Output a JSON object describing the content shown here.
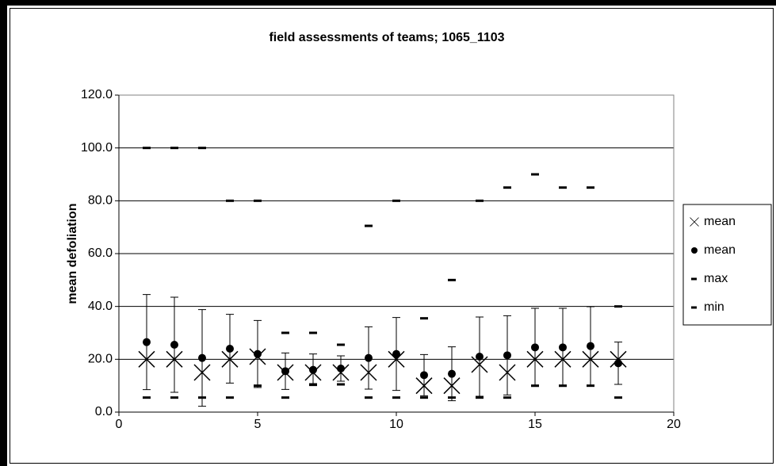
{
  "chart_data": {
    "type": "scatter",
    "title": "field assessments of teams; 1065_1103",
    "y_label": "mean defoliation",
    "xlim": [
      0,
      20
    ],
    "xticks": [
      0,
      5,
      10,
      15,
      20
    ],
    "ylim": [
      0,
      120
    ],
    "yticks": [
      {
        "value": 0,
        "label": "0.0"
      },
      {
        "value": 20,
        "label": "20.0"
      },
      {
        "value": 40,
        "label": "40.0"
      },
      {
        "value": 60,
        "label": "60.0"
      },
      {
        "value": 80,
        "label": "80.0"
      },
      {
        "value": 100,
        "label": "100.0"
      },
      {
        "value": 120,
        "label": "120.0"
      }
    ],
    "grid": true,
    "legend": "right",
    "x": [
      1,
      2,
      3,
      4,
      5,
      6,
      7,
      8,
      9,
      10,
      11,
      12,
      13,
      14,
      15,
      16,
      17,
      18
    ],
    "series": [
      {
        "name": "mean",
        "marker": "x",
        "color": "#000000",
        "values": [
          20,
          20,
          15,
          20,
          21,
          15,
          15,
          15,
          15,
          20,
          10,
          10,
          18,
          15,
          20,
          20,
          20,
          20
        ]
      },
      {
        "name": "mean",
        "marker": "dot",
        "color": "#000000",
        "values": [
          26.5,
          25.5,
          20.5,
          24,
          22,
          15.5,
          16,
          16.5,
          20.5,
          22,
          14,
          14.5,
          21,
          21.5,
          24.5,
          24.5,
          25,
          18.5
        ],
        "errors": [
          18,
          18,
          18.3,
          13,
          12.7,
          6.9,
          6,
          4.8,
          11.8,
          13.8,
          7.8,
          10.2,
          15,
          15,
          14.8,
          14.8,
          14.9,
          8
        ]
      },
      {
        "name": "max",
        "marker": "dash",
        "color": "#000000",
        "values": [
          100,
          100,
          100,
          80,
          80,
          30,
          30,
          25.5,
          70.5,
          80,
          35.5,
          50,
          80,
          85,
          90,
          85,
          85,
          40
        ]
      },
      {
        "name": "min",
        "marker": "dash",
        "color": "#000000",
        "values": [
          5.5,
          5.5,
          5.5,
          5.5,
          10,
          5.5,
          10.5,
          10.5,
          5.5,
          5.5,
          5.5,
          5.5,
          5.5,
          5.5,
          10,
          10,
          10,
          5.5
        ]
      }
    ]
  }
}
